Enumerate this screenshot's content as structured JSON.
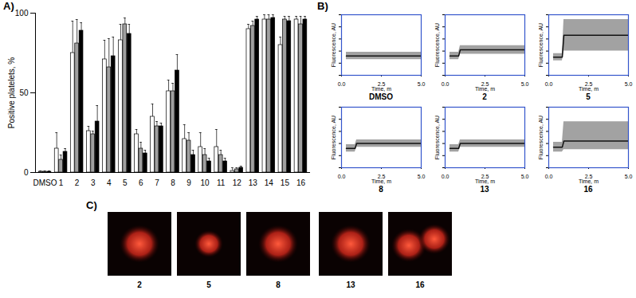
{
  "chart_data": [
    {
      "type": "bar",
      "panel": "A)",
      "categories": [
        "DMSO",
        "1",
        "2",
        "3",
        "4",
        "5",
        "6",
        "7",
        "8",
        "9",
        "10",
        "11",
        "12",
        "13",
        "14",
        "15",
        "16"
      ],
      "series": [
        {
          "color": "#ffffff",
          "values": [
            0.5,
            15,
            75,
            26,
            71,
            83,
            24,
            35,
            51,
            21,
            16,
            16,
            1,
            90,
            96,
            80,
            96
          ],
          "errors": [
            0.5,
            10,
            20,
            3,
            12,
            10,
            3,
            8,
            7,
            9,
            9,
            11,
            2,
            3,
            3,
            5,
            2
          ]
        },
        {
          "color": "#a0a0a0",
          "values": [
            0.5,
            8,
            81,
            24,
            66,
            93,
            15,
            29,
            51,
            20,
            11,
            11,
            2,
            92,
            96,
            96,
            93
          ],
          "errors": [
            0.5,
            3,
            15,
            2,
            18,
            4,
            4,
            3,
            5,
            5,
            4,
            3,
            1,
            3,
            3,
            2,
            5
          ]
        },
        {
          "color": "#000000",
          "values": [
            0.5,
            13,
            89,
            32,
            73,
            87,
            12,
            29,
            64,
            11,
            7,
            7,
            3,
            96,
            97,
            95,
            96
          ],
          "errors": [
            0.5,
            2,
            5,
            10,
            12,
            6,
            2,
            2,
            10,
            3,
            2,
            2,
            1,
            2,
            2,
            3,
            2
          ]
        }
      ],
      "y_label": "Positive platelets, %",
      "ylim": [
        0,
        100
      ],
      "yticks": [
        0,
        50,
        100
      ]
    },
    {
      "type": "line",
      "panel": "B)",
      "title": "DMSO",
      "x_label": "Time, m",
      "y_label": "Fluorescence, AU",
      "x": [
        0.3,
        0.85,
        0.95,
        5.0
      ],
      "values": [
        1.6,
        1.6,
        1.6,
        1.6
      ],
      "low": [
        1.3,
        1.3,
        1.3,
        1.3
      ],
      "high": [
        1.9,
        1.9,
        1.9,
        1.9
      ],
      "xlim": [
        0,
        5
      ],
      "xticks": [
        {
          "value": 0,
          "label": "0.0"
        },
        {
          "value": 2.5,
          "label": "2.5"
        },
        {
          "value": 5,
          "label": "5.0"
        }
      ],
      "ylim": [
        0,
        5
      ],
      "yticks": [
        0,
        1,
        2,
        3,
        4,
        5
      ],
      "tick_labels": "x"
    },
    {
      "type": "line",
      "title": "2",
      "x_label": "Time, m",
      "y_label": "Fluorescence, AU",
      "x": [
        0.3,
        0.85,
        0.95,
        5.0
      ],
      "values": [
        1.6,
        1.6,
        2.1,
        2.1
      ],
      "low": [
        1.3,
        1.3,
        1.75,
        1.75
      ],
      "high": [
        1.9,
        1.9,
        2.45,
        2.45
      ],
      "xlim": [
        0,
        5
      ],
      "xticks": [
        {
          "value": 0,
          "label": "0.0"
        },
        {
          "value": 2.5,
          "label": "2.5"
        },
        {
          "value": 5,
          "label": "5.0"
        }
      ],
      "ylim": [
        0,
        5
      ],
      "yticks": [
        0,
        1,
        2,
        3,
        4,
        5
      ],
      "tick_labels": "x"
    },
    {
      "type": "line",
      "title": "5",
      "x_label": "Time, m",
      "y_label": "Fluorescence, AU",
      "x": [
        0.3,
        0.85,
        0.95,
        5.0
      ],
      "values": [
        1.5,
        1.5,
        3.3,
        3.3
      ],
      "low": [
        1.2,
        1.2,
        2.0,
        2.0
      ],
      "high": [
        1.8,
        1.8,
        4.6,
        4.6
      ],
      "xlim": [
        0,
        5
      ],
      "xticks": [
        {
          "value": 0,
          "label": "0.0"
        },
        {
          "value": 2.5,
          "label": "2.5"
        },
        {
          "value": 5,
          "label": "5.0"
        }
      ],
      "ylim": [
        0,
        5
      ],
      "yticks": [
        0,
        1,
        2,
        3,
        4,
        5
      ],
      "tick_labels": "x"
    },
    {
      "type": "line",
      "title": "8",
      "x_label": "Time, m",
      "y_label": "Fluorescence, AU",
      "x": [
        0.3,
        0.85,
        0.95,
        5.0
      ],
      "values": [
        1.6,
        1.6,
        2.0,
        2.0
      ],
      "low": [
        1.3,
        1.3,
        1.7,
        1.7
      ],
      "high": [
        1.9,
        1.9,
        2.3,
        2.3
      ],
      "xlim": [
        0,
        5
      ],
      "xticks": [
        {
          "value": 0,
          "label": "0.0"
        },
        {
          "value": 2.5,
          "label": "2.5"
        },
        {
          "value": 5,
          "label": "5.0"
        }
      ],
      "ylim": [
        0,
        5
      ],
      "yticks": [
        0,
        1,
        2,
        3,
        4,
        5
      ],
      "tick_labels": "x"
    },
    {
      "type": "line",
      "title": "13",
      "x_label": "Time, m",
      "y_label": "Fluorescence, AU",
      "x": [
        0.3,
        0.85,
        0.95,
        5.0
      ],
      "values": [
        1.6,
        1.6,
        2.0,
        2.0
      ],
      "low": [
        1.3,
        1.3,
        1.7,
        1.7
      ],
      "high": [
        1.9,
        1.9,
        2.3,
        2.3
      ],
      "xlim": [
        0,
        5
      ],
      "xticks": [
        {
          "value": 0,
          "label": "0.0"
        },
        {
          "value": 2.5,
          "label": "2.5"
        },
        {
          "value": 5,
          "label": "5.0"
        }
      ],
      "ylim": [
        0,
        5
      ],
      "yticks": [
        0,
        1,
        2,
        3,
        4,
        5
      ],
      "tick_labels": "x"
    },
    {
      "type": "line",
      "title": "16",
      "x_label": "Time, m",
      "y_label": "Fluorescence, AU",
      "x": [
        0.3,
        0.85,
        0.95,
        5.0
      ],
      "values": [
        1.7,
        1.7,
        2.2,
        2.2
      ],
      "low": [
        1.3,
        1.3,
        1.5,
        1.5
      ],
      "high": [
        2.1,
        2.1,
        3.8,
        3.8
      ],
      "xlim": [
        0,
        5
      ],
      "xticks": [
        {
          "value": 0,
          "label": "0.0"
        },
        {
          "value": 2.5,
          "label": "2.5"
        },
        {
          "value": 5,
          "label": "5.0"
        }
      ],
      "ylim": [
        0,
        5
      ],
      "yticks": [
        0,
        1,
        2,
        3,
        4,
        5
      ],
      "tick_labels": "x"
    }
  ],
  "images": {
    "panel": "C)",
    "labels": [
      "2",
      "5",
      "8",
      "13",
      "16"
    ]
  }
}
